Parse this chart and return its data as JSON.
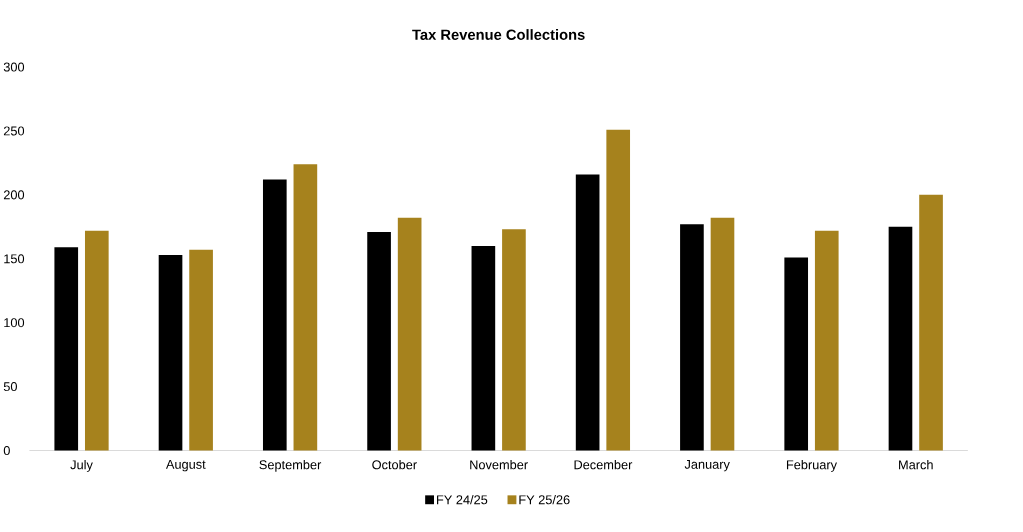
{
  "chart_data": {
    "type": "bar",
    "title": "Tax Revenue Collections",
    "categories": [
      "July",
      "August",
      "September",
      "October",
      "November",
      "December",
      "January",
      "February",
      "March"
    ],
    "series": [
      {
        "name": "FY 24/25",
        "color": "#000000",
        "values": [
          159,
          153,
          212,
          171,
          160,
          216,
          177,
          151,
          175
        ]
      },
      {
        "name": "FY 25/26",
        "color": "#a6821d",
        "values": [
          172,
          157,
          224,
          182,
          173,
          251,
          182,
          172,
          200
        ]
      }
    ],
    "ylim": [
      0,
      300
    ],
    "yticks": [
      0,
      50,
      100,
      150,
      200,
      250,
      300
    ],
    "legend": "bottom"
  }
}
